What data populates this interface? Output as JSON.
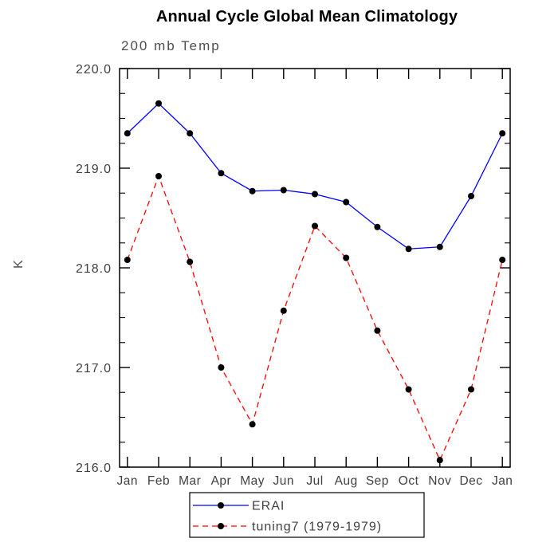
{
  "chart_data": {
    "type": "line",
    "title": "Annual Cycle Global Mean Climatology",
    "subtitle": "200 mb Temp",
    "xlabel": "",
    "ylabel": "K",
    "categories": [
      "Jan",
      "Feb",
      "Mar",
      "Apr",
      "May",
      "Jun",
      "Jul",
      "Aug",
      "Sep",
      "Oct",
      "Nov",
      "Dec",
      "Jan"
    ],
    "ylim": [
      216.0,
      220.0
    ],
    "yticks": [
      216.0,
      217.0,
      218.0,
      219.0,
      220.0
    ],
    "ytick_labels": [
      "216.0",
      "217.0",
      "218.0",
      "219.0",
      "220.0"
    ],
    "minor_tick_step": 0.25,
    "grid": false,
    "legend_position": "bottom-center",
    "series": [
      {
        "name": "ERAI",
        "color": "#0000ff",
        "style": "solid",
        "marker": "circle",
        "marker_color": "#000000",
        "values": [
          219.35,
          219.65,
          219.35,
          218.95,
          218.77,
          218.78,
          218.74,
          218.66,
          218.41,
          218.19,
          218.21,
          218.72,
          219.35
        ]
      },
      {
        "name": "tuning7 (1979-1979)",
        "color": "#ff0000",
        "style": "dashed",
        "marker": "circle",
        "marker_color": "#000000",
        "values": [
          218.08,
          218.92,
          218.06,
          217.0,
          216.43,
          217.57,
          218.42,
          218.1,
          217.37,
          216.78,
          216.07,
          216.78,
          218.08
        ]
      }
    ]
  },
  "colors": {
    "background": "#ffffff",
    "axis": "#000000",
    "tick_label": "#404040",
    "title": "#000000",
    "subtitle": "#4d4d4d",
    "legend_border": "#000000",
    "legend_text": "#404040"
  }
}
